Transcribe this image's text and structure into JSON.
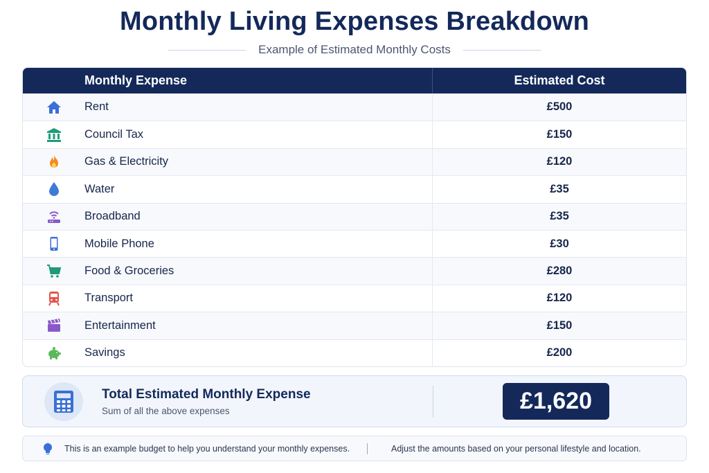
{
  "header": {
    "title": "Monthly Living Expenses Breakdown",
    "subtitle": "Example of Estimated Monthly Costs"
  },
  "table": {
    "col_expense": "Monthly Expense",
    "col_cost": "Estimated Cost",
    "rows": [
      {
        "name": "Rent",
        "cost": "£500",
        "icon": "house-icon",
        "color": "#3b6fd8"
      },
      {
        "name": "Council Tax",
        "cost": "£150",
        "icon": "bank-building-icon",
        "color": "#1f9a7a"
      },
      {
        "name": "Gas & Electricity",
        "cost": "£120",
        "icon": "flame-icon",
        "color": "#f28a1d"
      },
      {
        "name": "Water",
        "cost": "£35",
        "icon": "water-drop-icon",
        "color": "#3f7ad8"
      },
      {
        "name": "Broadband",
        "cost": "£35",
        "icon": "wifi-router-icon",
        "color": "#8a58c9"
      },
      {
        "name": "Mobile Phone",
        "cost": "£30",
        "icon": "mobile-phone-icon",
        "color": "#3b6fd8"
      },
      {
        "name": "Food & Groceries",
        "cost": "£280",
        "icon": "shopping-cart-icon",
        "color": "#1f9a7a"
      },
      {
        "name": "Transport",
        "cost": "£120",
        "icon": "train-icon",
        "color": "#e5534b"
      },
      {
        "name": "Entertainment",
        "cost": "£150",
        "icon": "clapperboard-icon",
        "color": "#8a58c9"
      },
      {
        "name": "Savings",
        "cost": "£200",
        "icon": "piggy-bank-icon",
        "color": "#5cb85c"
      }
    ]
  },
  "total": {
    "title": "Total Estimated Monthly Expense",
    "subtitle": "Sum of all the above expenses",
    "amount": "£1,620",
    "icon": "calculator-icon"
  },
  "note": {
    "icon": "lightbulb-icon",
    "left": "This is an example budget to help you understand your monthly expenses.",
    "right": "Adjust the amounts based on your personal lifestyle and location."
  },
  "colors": {
    "navy": "#14295a",
    "accent_blue": "#3b6fd8"
  }
}
